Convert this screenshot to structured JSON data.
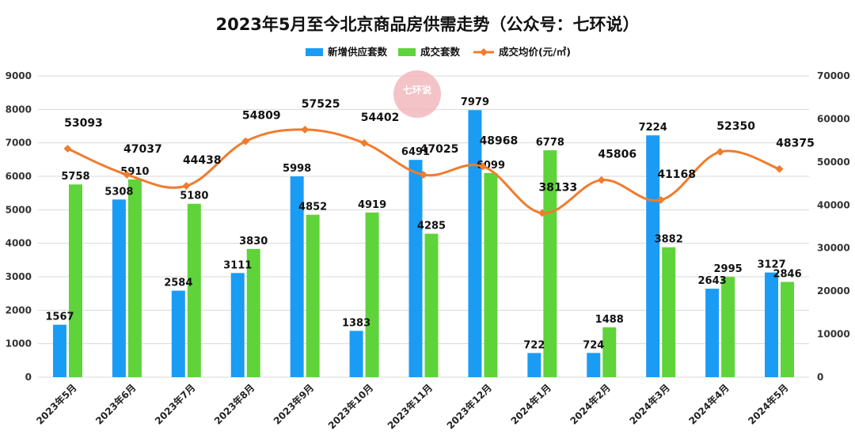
{
  "chart_data": {
    "type": "bar+line",
    "title": "2023年5月至今北京商品房供需走势（公众号：七环说）",
    "categories": [
      "2023年5月",
      "2023年6月",
      "2023年7月",
      "2023年8月",
      "2023年9月",
      "2023年10月",
      "2023年11月",
      "2023年12月",
      "2024年1月",
      "2024年2月",
      "2024年3月",
      "2024年4月",
      "2024年5月"
    ],
    "series": [
      {
        "name": "新增供应套数",
        "type": "bar",
        "axis": "left",
        "color": "#1a9cf5",
        "values": [
          1567,
          5308,
          2584,
          3111,
          5998,
          1383,
          6491,
          7979,
          722,
          724,
          7224,
          2643,
          3127
        ]
      },
      {
        "name": "成交套数",
        "type": "bar",
        "axis": "left",
        "color": "#5fd33a",
        "values": [
          5758,
          5910,
          5180,
          3830,
          4852,
          4919,
          4285,
          6099,
          6778,
          1488,
          3882,
          2995,
          2846
        ]
      },
      {
        "name": "成交均价(元/㎡)",
        "type": "line",
        "axis": "right",
        "color": "#f07c2d",
        "values": [
          53093,
          47037,
          44438,
          54809,
          57525,
          54402,
          47025,
          48968,
          38133,
          45806,
          41168,
          52350,
          48375
        ]
      }
    ],
    "y_left": {
      "min": 0,
      "max": 9000,
      "step": 1000
    },
    "y_right": {
      "min": 0,
      "max": 70000,
      "step": 10000
    },
    "legend_position": "top-center",
    "grid": true
  },
  "watermark": {
    "text": "七环说",
    "color": "#f2b8bd"
  }
}
